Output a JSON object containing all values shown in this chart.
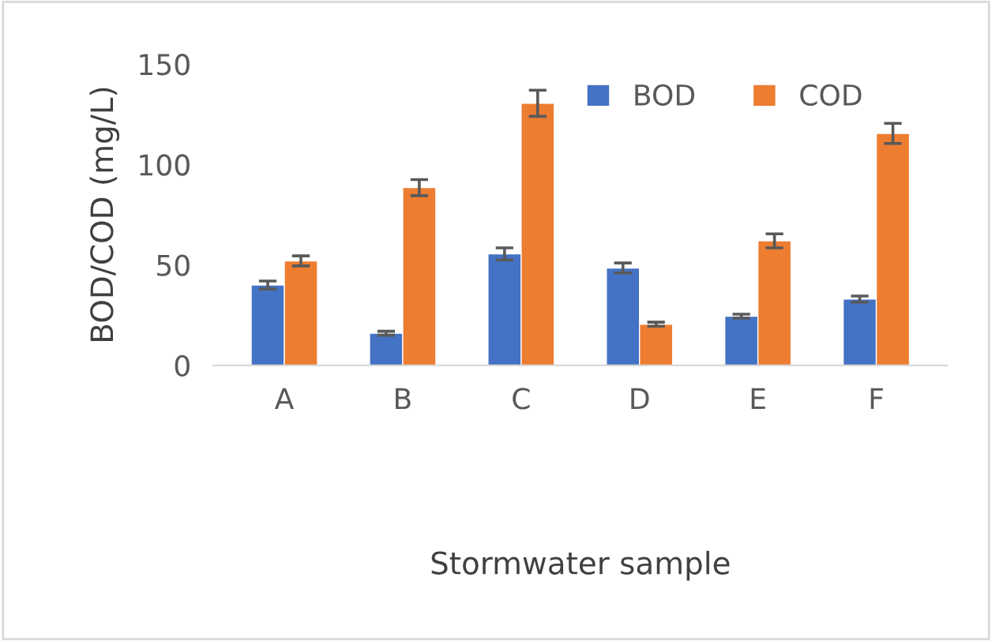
{
  "chart_data": {
    "type": "bar",
    "xlabel": "Stormwater sample",
    "ylabel": "BOD/COD (mg/L)",
    "categories": [
      "A",
      "B",
      "C",
      "D",
      "E",
      "F"
    ],
    "series": [
      {
        "name": "BOD",
        "color": "#4472c4",
        "values": [
          40,
          16,
          55.5,
          48.5,
          24.5,
          33
        ],
        "errors": [
          2,
          1,
          3,
          2.5,
          1,
          1.5
        ]
      },
      {
        "name": "COD",
        "color": "#ed7d31",
        "values": [
          52,
          88.5,
          130.5,
          20.5,
          62,
          115.5
        ],
        "errors": [
          2.5,
          4,
          6.5,
          1,
          3.5,
          5
        ]
      }
    ],
    "ylim": [
      0,
      150
    ],
    "yticks": [
      0,
      50,
      100,
      150
    ],
    "grid": false,
    "legend": "top right"
  }
}
